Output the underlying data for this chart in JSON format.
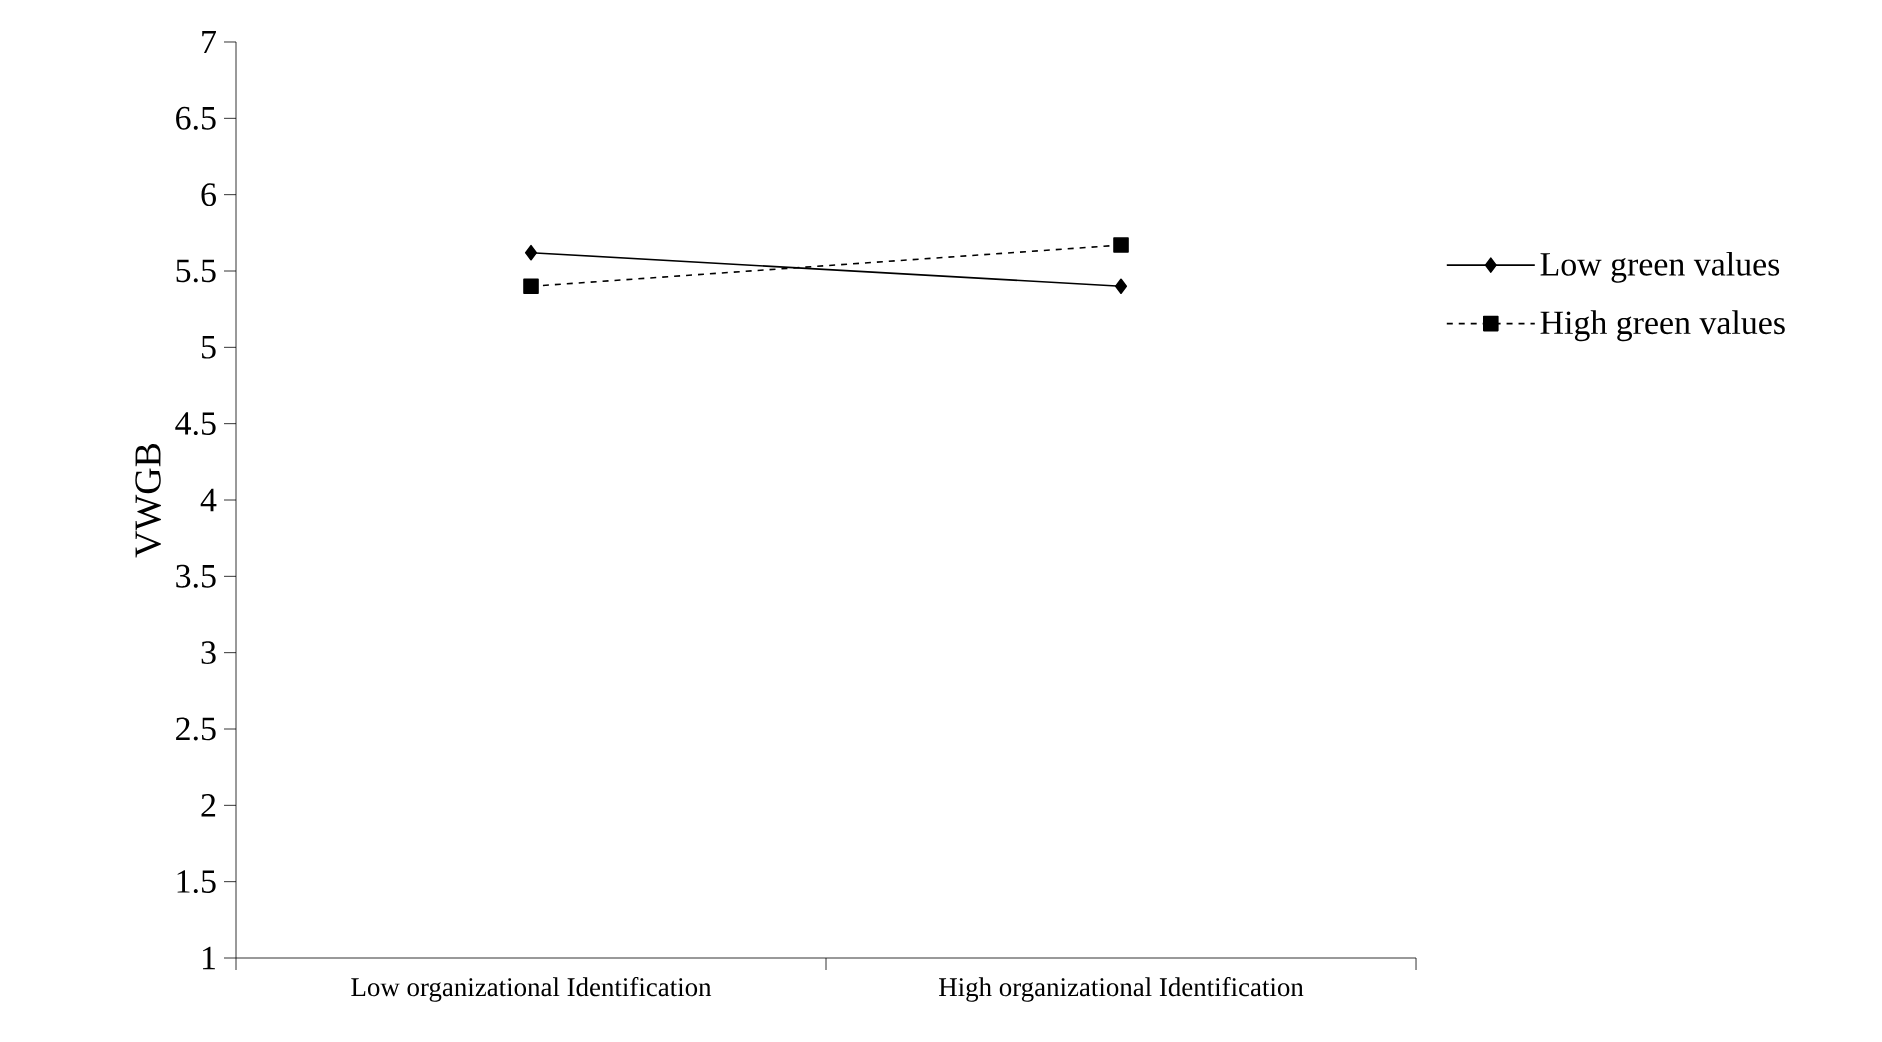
{
  "chart_data": {
    "type": "line",
    "ylabel": "VWGB",
    "categories": [
      "Low organizational Identification",
      "High organizational Identification"
    ],
    "series": [
      {
        "name": "Low green values",
        "color": "#000000",
        "values": [
          5.62,
          5.4
        ],
        "marker": "diamond",
        "line_style": "solid"
      },
      {
        "name": "High green values",
        "color": "#000000",
        "values": [
          5.4,
          5.67
        ],
        "marker": "square",
        "line_style": "dashed"
      }
    ],
    "ylim": [
      1,
      7
    ],
    "yticks": [
      1,
      1.5,
      2,
      2.5,
      3,
      3.5,
      4,
      4.5,
      5,
      5.5,
      6,
      6.5,
      7
    ],
    "grid": false,
    "legend": "right"
  }
}
